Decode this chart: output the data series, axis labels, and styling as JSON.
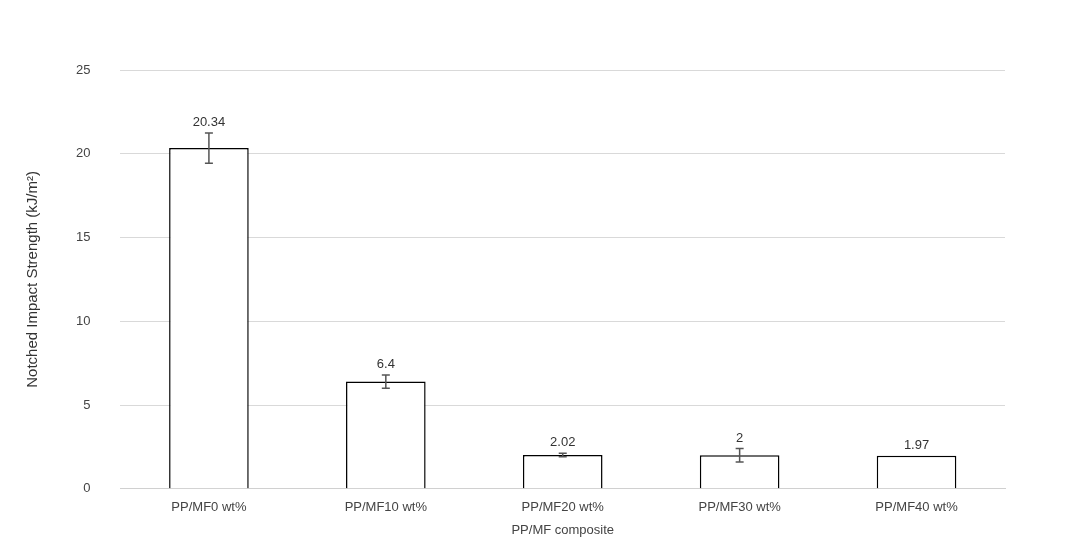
{
  "chart_data": {
    "type": "bar",
    "xlabel": "PP/MF composite",
    "ylabel": "Notched Impact Strength (kJ/m²)",
    "categories": [
      "PP/MF0 wt%",
      "PP/MF10 wt%",
      "PP/MF20 wt%",
      "PP/MF30 wt%",
      "PP/MF40 wt%"
    ],
    "values": [
      20.34,
      6.4,
      2.02,
      2,
      1.97
    ],
    "color": "#ffffff",
    "errors": [
      0.9,
      0.4,
      0.1,
      0.4,
      null
    ],
    "ylim": [
      0,
      25
    ],
    "yticks": [
      0,
      5,
      10,
      15,
      20,
      25
    ],
    "grid": "y",
    "data_labels": true,
    "legend": false
  }
}
